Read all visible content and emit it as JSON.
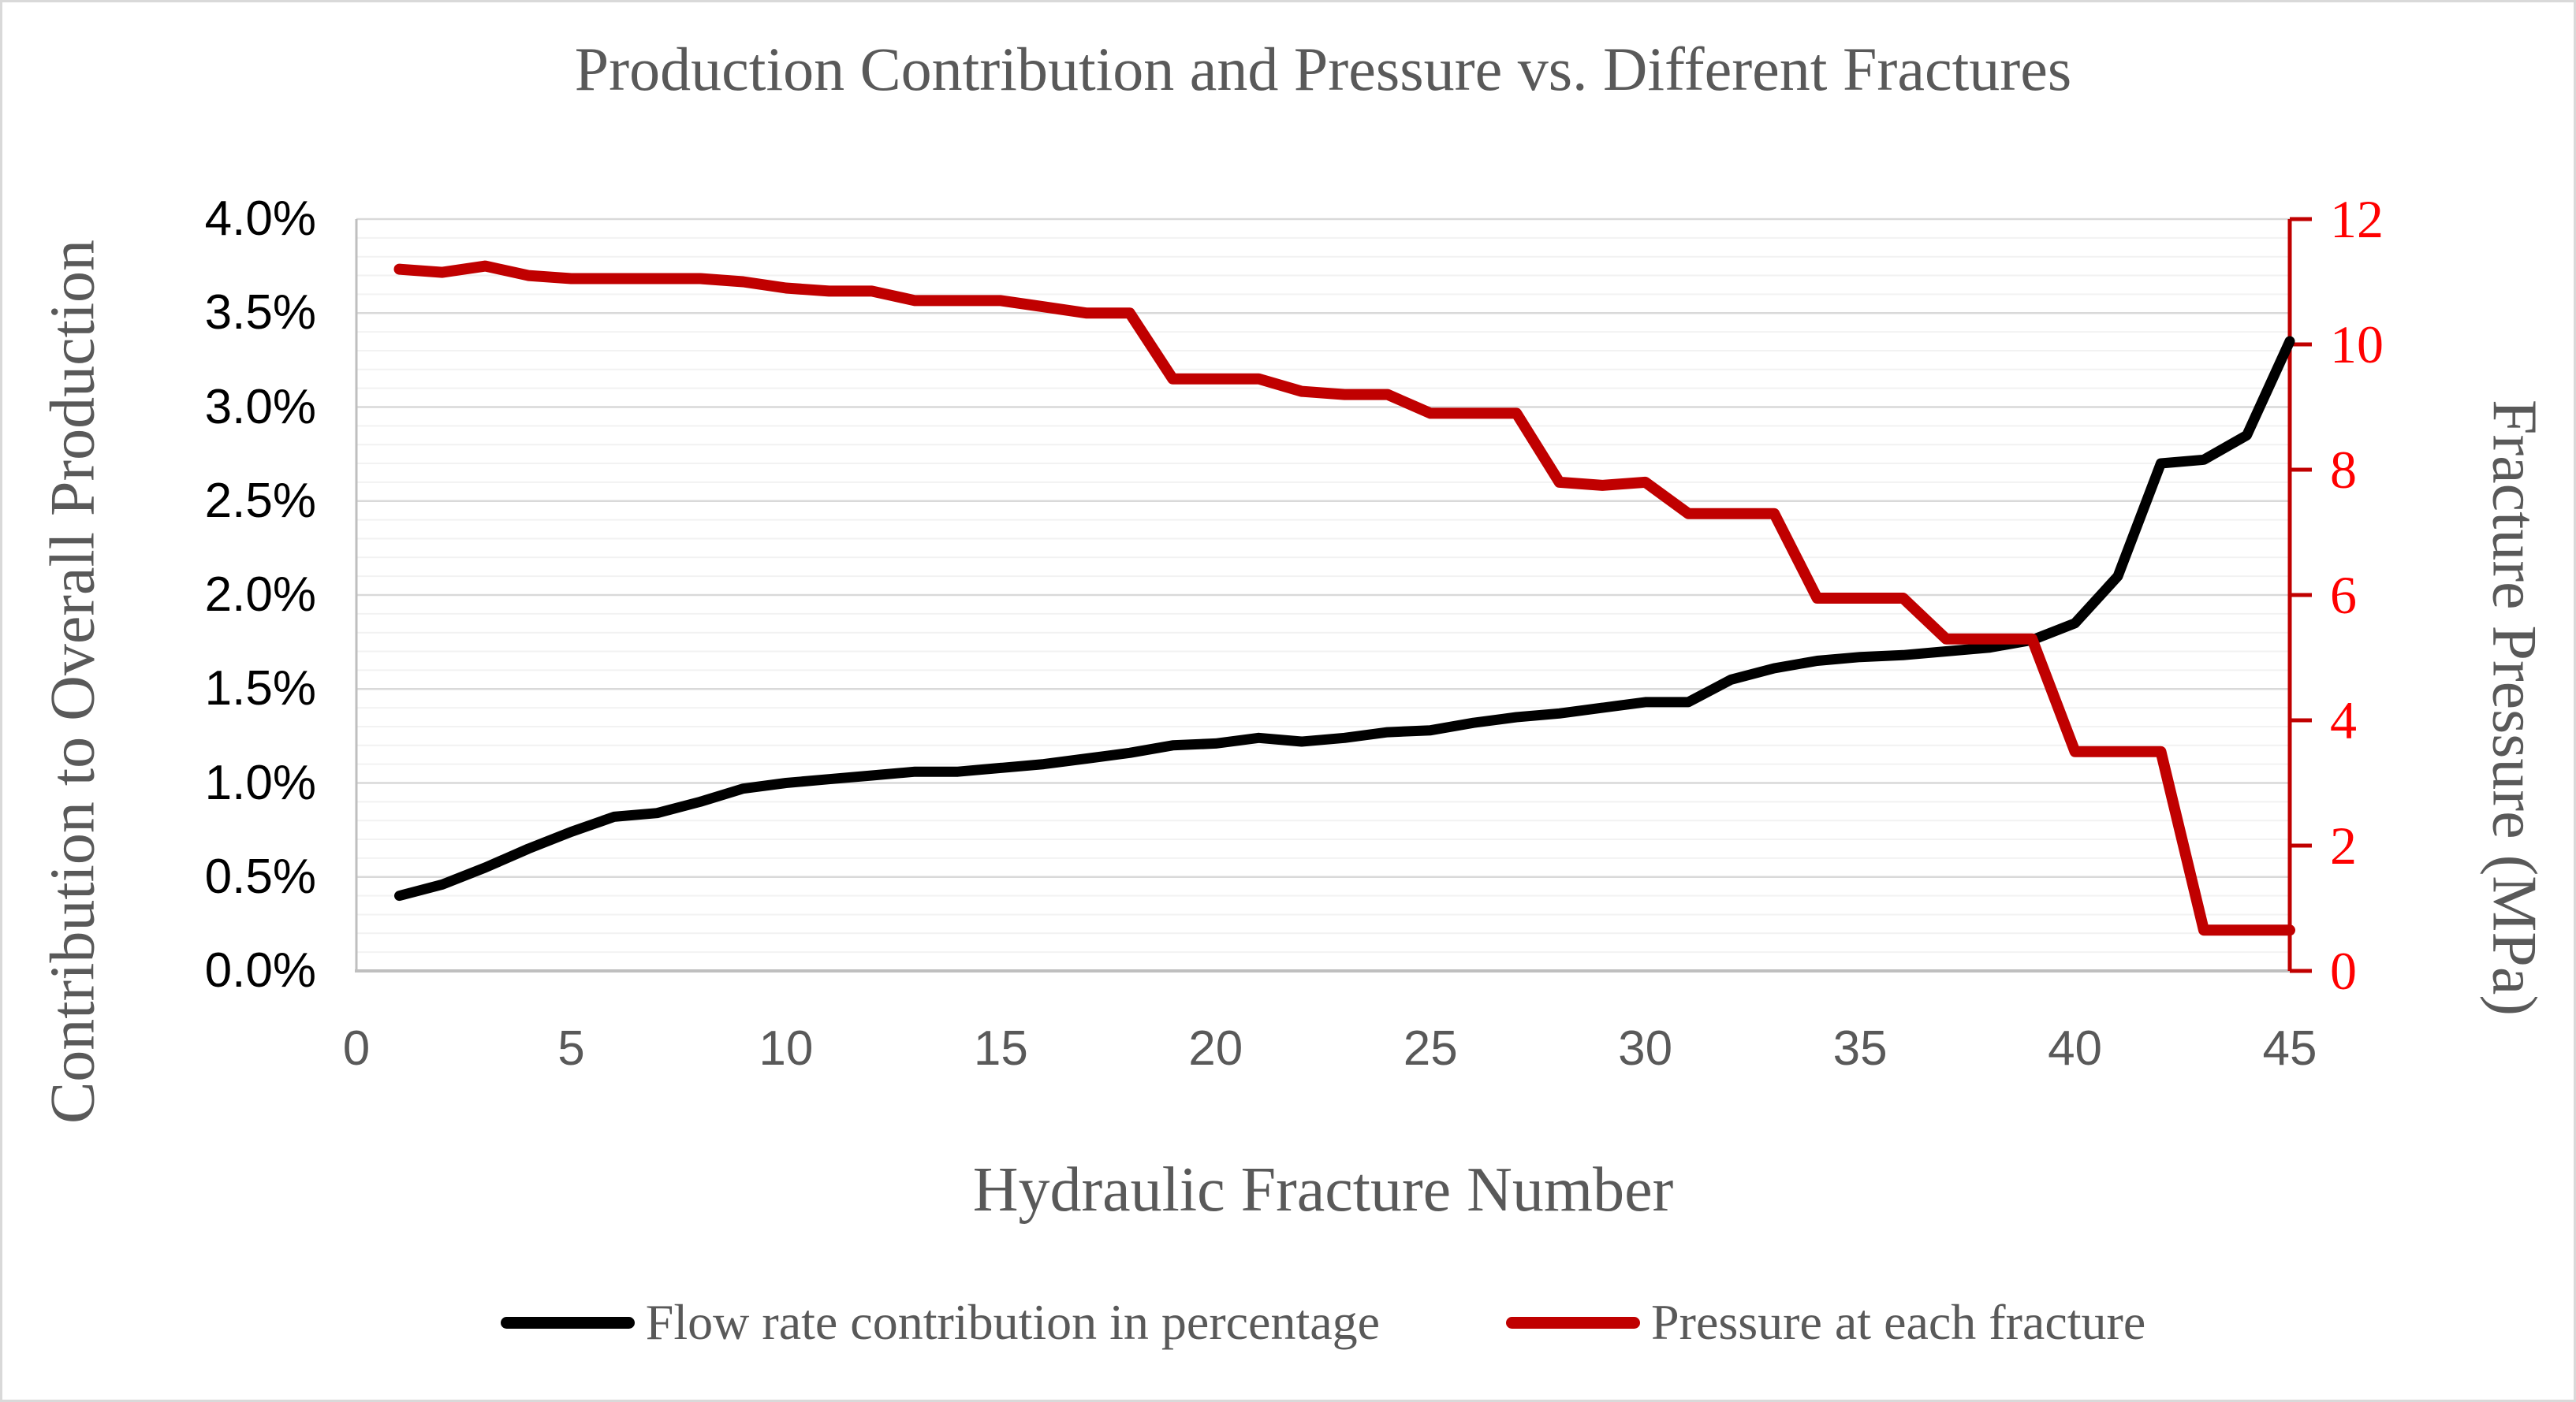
{
  "title": "Production Contribution and Pressure vs. Different Fractures",
  "x_axis": {
    "title": "Hydraulic Fracture Number",
    "tick_values": [
      0,
      5,
      10,
      15,
      20,
      25,
      30,
      35,
      40,
      45
    ],
    "tick_labels": [
      "0",
      "5",
      "10",
      "15",
      "20",
      "25",
      "30",
      "35",
      "40",
      "45"
    ],
    "range": [
      0,
      45
    ]
  },
  "y_left_axis": {
    "title": "Contribution to Overall Production",
    "tick_values": [
      0,
      0.5,
      1.0,
      1.5,
      2.0,
      2.5,
      3.0,
      3.5,
      4.0
    ],
    "tick_labels": [
      "0.0%",
      "0.5%",
      "1.0%",
      "1.5%",
      "2.0%",
      "2.5%",
      "3.0%",
      "3.5%",
      "4.0%"
    ],
    "range": [
      0,
      4
    ],
    "major_step": 0.5,
    "minor_step": 0.1,
    "label_color": "#000000"
  },
  "y_right_axis": {
    "title": "Fracture Pressure (MPa)",
    "tick_values": [
      0,
      2,
      4,
      6,
      8,
      10,
      12
    ],
    "tick_labels": [
      "0",
      "2",
      "4",
      "6",
      "8",
      "10",
      "12"
    ],
    "range": [
      0,
      12
    ],
    "label_color": "#FF0000",
    "axis_color": "#C00000"
  },
  "legend": {
    "items": [
      {
        "label": "Flow rate contribution in percentage",
        "color": "#000000"
      },
      {
        "label": "Pressure at each fracture",
        "color": "#C00000"
      }
    ]
  },
  "colors": {
    "title_text": "#595959",
    "axis_title_text": "#595959",
    "x_tick_text": "#595959",
    "major_gridline": "#D9D9D9",
    "minor_gridline": "#F2F2F2",
    "axis_line": "#BFBFBF",
    "right_axis_line": "#C00000",
    "flow_series": "#000000",
    "pressure_series": "#C00000",
    "frame_border": "#D9D9D9"
  },
  "chart_data": {
    "type": "line",
    "title": "Production Contribution and Pressure vs. Different Fractures",
    "xlabel": "Hydraulic Fracture Number",
    "y_left_label": "Contribution to Overall Production",
    "y_right_label": "Fracture Pressure (MPa)",
    "x_range": [
      0,
      45
    ],
    "y_left_range": [
      0,
      4
    ],
    "y_right_range": [
      0,
      12
    ],
    "grid": "horizontal major 0.5% + minor 0.1%",
    "legend_position": "bottom",
    "x": [
      1,
      2,
      3,
      4,
      5,
      6,
      7,
      8,
      9,
      10,
      11,
      12,
      13,
      14,
      15,
      16,
      17,
      18,
      19,
      20,
      21,
      22,
      23,
      24,
      25,
      26,
      27,
      28,
      29,
      30,
      31,
      32,
      33,
      34,
      35,
      36,
      37,
      38,
      39,
      40,
      41,
      42,
      43,
      44,
      45
    ],
    "series": [
      {
        "name": "Flow rate contribution in percentage",
        "axis": "left",
        "unit": "%",
        "color": "#000000",
        "stroke_width": 13,
        "values": [
          0.4,
          0.46,
          0.55,
          0.65,
          0.74,
          0.82,
          0.84,
          0.9,
          0.97,
          1.0,
          1.02,
          1.04,
          1.06,
          1.06,
          1.08,
          1.1,
          1.13,
          1.16,
          1.2,
          1.21,
          1.24,
          1.22,
          1.24,
          1.27,
          1.28,
          1.32,
          1.35,
          1.37,
          1.4,
          1.43,
          1.43,
          1.55,
          1.61,
          1.65,
          1.67,
          1.68,
          1.7,
          1.72,
          1.76,
          1.85,
          2.1,
          2.7,
          2.72,
          2.85,
          3.35
        ]
      },
      {
        "name": "Pressure at each fracture",
        "axis": "right",
        "unit": "MPa",
        "color": "#C00000",
        "stroke_width": 14,
        "values": [
          11.2,
          11.15,
          11.25,
          11.1,
          11.05,
          11.05,
          11.05,
          11.05,
          11.0,
          10.9,
          10.85,
          10.85,
          10.7,
          10.7,
          10.7,
          10.6,
          10.5,
          10.5,
          9.45,
          9.45,
          9.45,
          9.25,
          9.2,
          9.2,
          8.9,
          8.9,
          8.9,
          7.8,
          7.75,
          7.8,
          7.3,
          7.3,
          7.3,
          5.95,
          5.95,
          5.95,
          5.3,
          5.3,
          5.3,
          3.5,
          3.5,
          3.5,
          0.65,
          0.65,
          0.65
        ]
      }
    ]
  }
}
